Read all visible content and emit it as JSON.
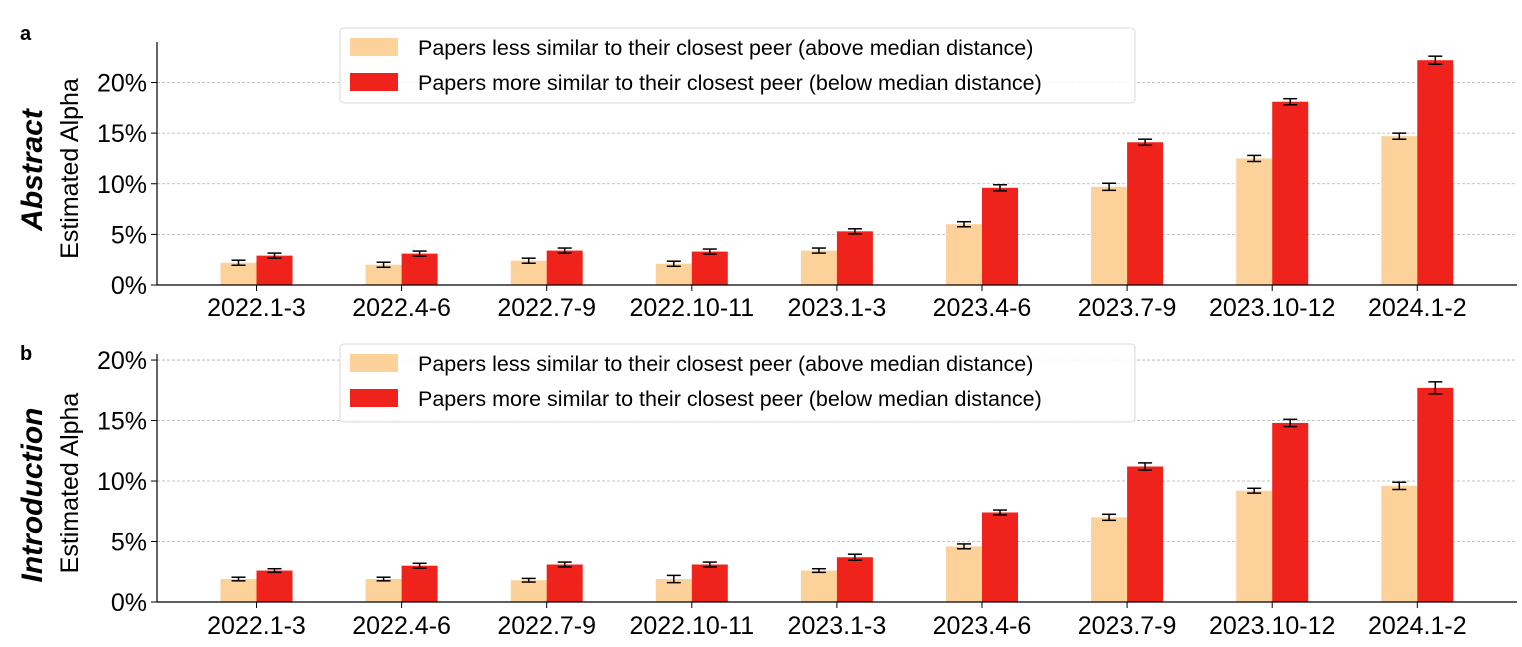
{
  "chart_data": [
    {
      "type": "bar",
      "panel_letter": "a",
      "row_label": "Abstract",
      "ylabel": "Estimated Alpha",
      "categories": [
        "2022.1-3",
        "2022.4-6",
        "2022.7-9",
        "2022.10-11",
        "2023.1-3",
        "2023.4-6",
        "2023.7-9",
        "2023.10-12",
        "2024.1-2"
      ],
      "ylim": [
        0,
        24
      ],
      "yticks": [
        0,
        5,
        10,
        15,
        20
      ],
      "ytick_labels": [
        "0%",
        "5%",
        "10%",
        "15%",
        "20%"
      ],
      "grid": "horizontal dashed",
      "legend_position": "top-center",
      "series": [
        {
          "name": "Papers less similar to their closest peer (above median distance)",
          "color": "#fdd29a",
          "values": [
            2.2,
            2.0,
            2.4,
            2.1,
            3.4,
            6.0,
            9.7,
            12.5,
            14.7
          ],
          "errors": [
            0.25,
            0.25,
            0.25,
            0.25,
            0.25,
            0.25,
            0.35,
            0.3,
            0.3
          ]
        },
        {
          "name": "Papers more similar to their closest peer (below median distance)",
          "color": "#f0221c",
          "values": [
            2.9,
            3.1,
            3.4,
            3.3,
            5.3,
            9.6,
            14.1,
            18.1,
            22.2
          ],
          "errors": [
            0.25,
            0.25,
            0.25,
            0.25,
            0.25,
            0.3,
            0.3,
            0.3,
            0.4
          ]
        }
      ]
    },
    {
      "type": "bar",
      "panel_letter": "b",
      "row_label": "Introduction",
      "ylabel": "Estimated Alpha",
      "categories": [
        "2022.1-3",
        "2022.4-6",
        "2022.7-9",
        "2022.10-11",
        "2023.1-3",
        "2023.4-6",
        "2023.7-9",
        "2023.10-12",
        "2024.1-2"
      ],
      "ylim": [
        0,
        20.5
      ],
      "yticks": [
        0,
        5,
        10,
        15,
        20
      ],
      "ytick_labels": [
        "0%",
        "5%",
        "10%",
        "15%",
        "20%"
      ],
      "grid": "horizontal dashed",
      "legend_position": "top-center",
      "series": [
        {
          "name": "Papers less similar to their closest peer (above median distance)",
          "color": "#fdd29a",
          "values": [
            1.9,
            1.9,
            1.8,
            1.9,
            2.6,
            4.6,
            7.0,
            9.2,
            9.6
          ],
          "errors": [
            0.15,
            0.15,
            0.15,
            0.3,
            0.15,
            0.2,
            0.25,
            0.2,
            0.3
          ]
        },
        {
          "name": "Papers more similar to their closest peer (below median distance)",
          "color": "#f0221c",
          "values": [
            2.6,
            3.0,
            3.1,
            3.1,
            3.7,
            7.4,
            11.2,
            14.8,
            17.7
          ],
          "errors": [
            0.15,
            0.2,
            0.2,
            0.2,
            0.25,
            0.2,
            0.3,
            0.3,
            0.5
          ]
        }
      ]
    }
  ]
}
